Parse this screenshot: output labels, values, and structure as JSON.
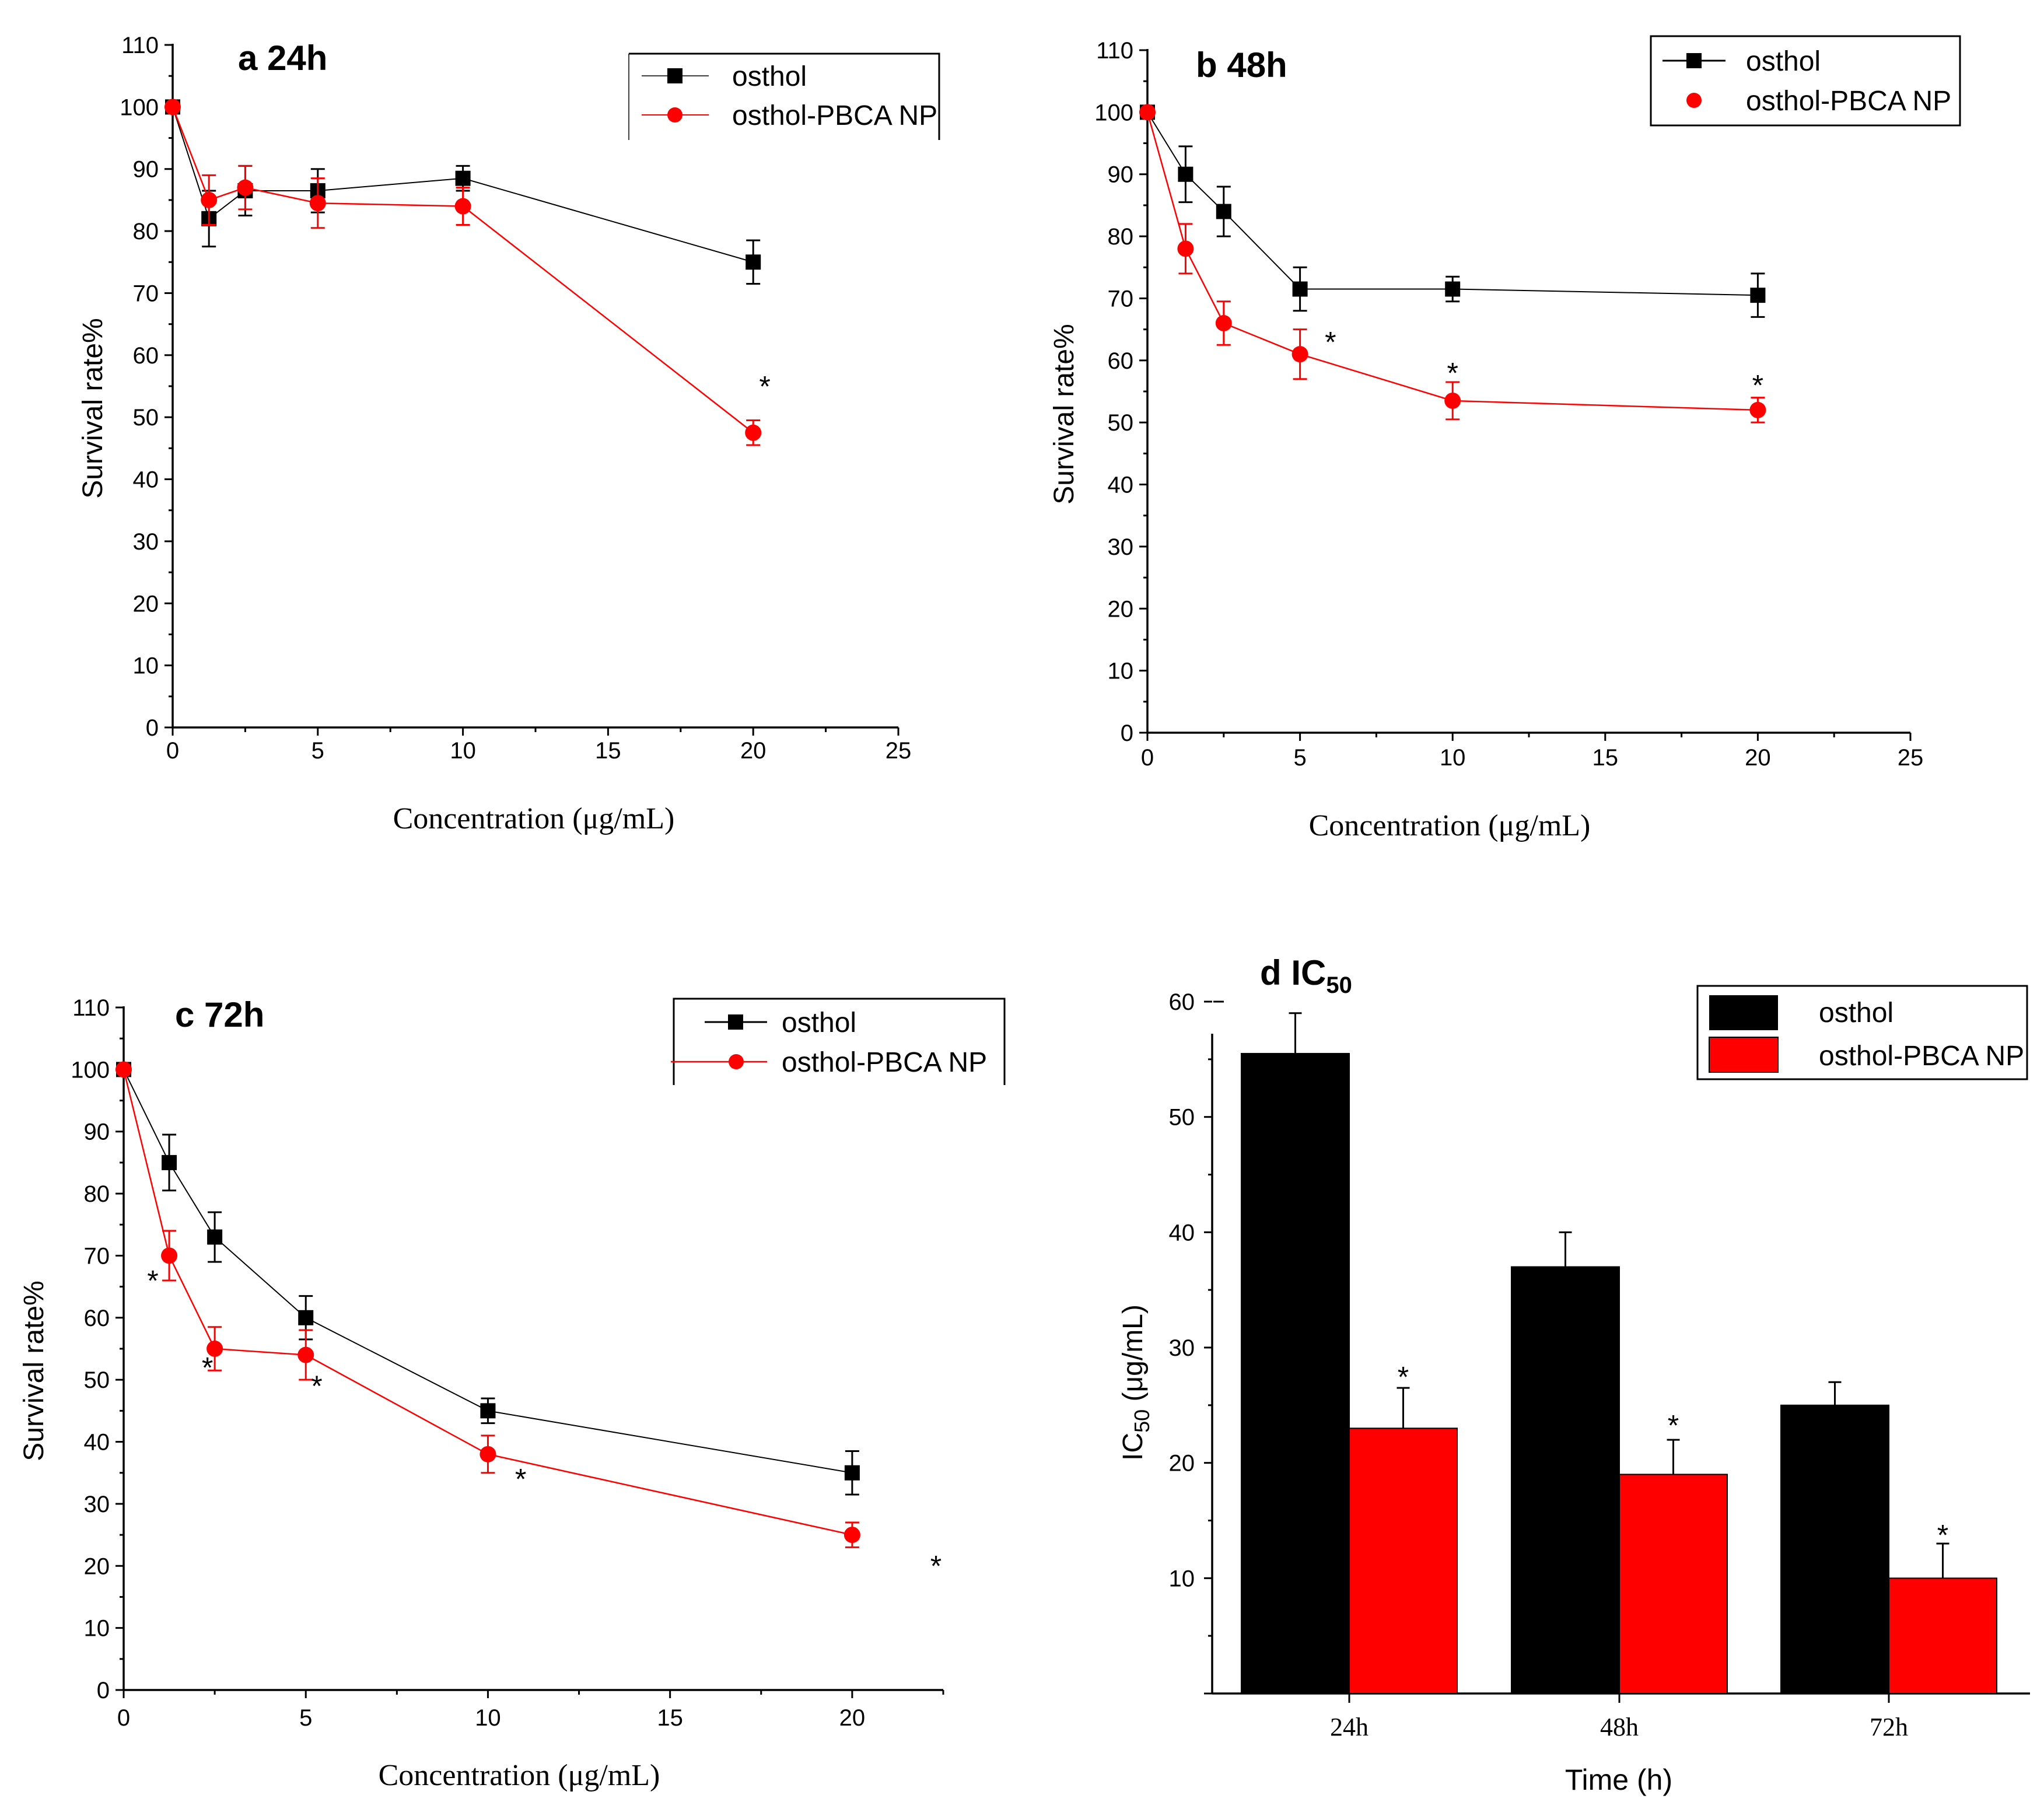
{
  "colors": {
    "osthol": "#000000",
    "np": "#ff0000"
  },
  "chart_data": [
    {
      "type": "line",
      "title": "a 24h",
      "xlabel": "Concentration (μg/mL)",
      "ylabel": "Survival rate%",
      "xlim": [
        0,
        25
      ],
      "ylim": [
        0,
        110
      ],
      "xticks": [
        0,
        5,
        10,
        15,
        20,
        25
      ],
      "yticks": [
        0,
        10,
        20,
        30,
        40,
        50,
        60,
        70,
        80,
        90,
        100,
        110
      ],
      "legend": "top-right",
      "series": [
        {
          "name": "osthol",
          "marker": "square",
          "x": [
            0,
            1.25,
            2.5,
            5,
            10,
            20
          ],
          "y": [
            100,
            82,
            86.5,
            86.5,
            88.5,
            75
          ],
          "err": [
            0,
            4.5,
            4,
            3.5,
            2,
            3.5
          ]
        },
        {
          "name": "osthol-PBCA NP",
          "marker": "circle",
          "x": [
            0,
            1.25,
            2.5,
            5,
            10,
            20
          ],
          "y": [
            100,
            85,
            87,
            84.5,
            84,
            47.5
          ],
          "err": [
            0,
            4,
            3.5,
            4,
            3,
            2
          ]
        }
      ],
      "annotations": [
        {
          "text": "*",
          "x": 20.4,
          "y": 56
        }
      ]
    },
    {
      "type": "line",
      "title": "b 48h",
      "xlabel": "Concentration (μg/mL)",
      "ylabel": "Survival rate%",
      "xlim": [
        0,
        25
      ],
      "ylim": [
        0,
        110
      ],
      "xticks": [
        0,
        5,
        10,
        15,
        20,
        25
      ],
      "yticks": [
        0,
        10,
        20,
        30,
        40,
        50,
        60,
        70,
        80,
        90,
        100,
        110
      ],
      "legend": "top-right",
      "series": [
        {
          "name": "osthol",
          "marker": "square",
          "x": [
            0,
            1.25,
            2.5,
            5,
            10,
            20
          ],
          "y": [
            100,
            90,
            84,
            71.5,
            71.5,
            70.5
          ],
          "err": [
            0,
            4.5,
            4,
            3.5,
            2,
            3.5
          ]
        },
        {
          "name": "osthol-PBCA NP",
          "marker": "circle",
          "x": [
            0,
            1.25,
            2.5,
            5,
            10,
            20
          ],
          "y": [
            100,
            78,
            66,
            61,
            53.5,
            52
          ],
          "err": [
            0,
            4,
            3.5,
            4,
            3,
            2
          ]
        }
      ],
      "annotations": [
        {
          "text": "*",
          "x": 6,
          "y": 64
        },
        {
          "text": "*",
          "x": 10,
          "y": 59
        },
        {
          "text": "*",
          "x": 20,
          "y": 57
        }
      ]
    },
    {
      "type": "line",
      "title": "c 72h",
      "xlabel": "Concentration (μg/mL)",
      "ylabel": "Survival rate%",
      "xlim": [
        0,
        22.5
      ],
      "ylim": [
        0,
        110
      ],
      "xticks": [
        0,
        5,
        10,
        15,
        20
      ],
      "yticks": [
        0,
        10,
        20,
        30,
        40,
        50,
        60,
        70,
        80,
        90,
        100,
        110
      ],
      "legend": "top-right",
      "series": [
        {
          "name": "osthol",
          "marker": "square",
          "x": [
            0,
            1.25,
            2.5,
            5,
            10,
            20
          ],
          "y": [
            100,
            85,
            73,
            60,
            45,
            35
          ],
          "err": [
            0,
            4.5,
            4,
            3.5,
            2,
            3.5
          ]
        },
        {
          "name": "osthol-PBCA NP",
          "marker": "circle",
          "x": [
            0,
            1.25,
            2.5,
            5,
            10,
            20
          ],
          "y": [
            100,
            70,
            55,
            54,
            38,
            25
          ],
          "err": [
            0,
            4,
            3.5,
            4,
            3,
            2
          ]
        }
      ],
      "annotations": [
        {
          "text": "*",
          "x": 0.8,
          "y": 67
        },
        {
          "text": "*",
          "x": 2.3,
          "y": 53
        },
        {
          "text": "*",
          "x": 5.3,
          "y": 50
        },
        {
          "text": "*",
          "x": 10.9,
          "y": 35
        },
        {
          "text": "*",
          "x": 22.3,
          "y": 21
        }
      ]
    },
    {
      "type": "bar",
      "title": "d IC",
      "title_sub": "50",
      "xlabel": "Time (h)",
      "ylabel": "IC",
      "ylabel_sub": "50",
      "ylabel_unit": " (μg/mL)",
      "ylim": [
        0,
        60
      ],
      "yticks": [
        10,
        20,
        30,
        40,
        50,
        60
      ],
      "categories": [
        "24h",
        "48h",
        "72h"
      ],
      "legend": "top-right",
      "series": [
        {
          "name": "osthol",
          "values": [
            55.5,
            37,
            25
          ],
          "err": [
            3.5,
            3,
            2
          ]
        },
        {
          "name": "osthol-PBCA NP",
          "values": [
            23,
            19,
            10
          ],
          "err": [
            3.5,
            3,
            3
          ]
        }
      ],
      "annotations": [
        {
          "text": "*",
          "category": "24h",
          "y": 28
        },
        {
          "text": "*",
          "category": "48h",
          "y": 23.8
        },
        {
          "text": "*",
          "category": "72h",
          "y": 14.3
        }
      ]
    }
  ]
}
